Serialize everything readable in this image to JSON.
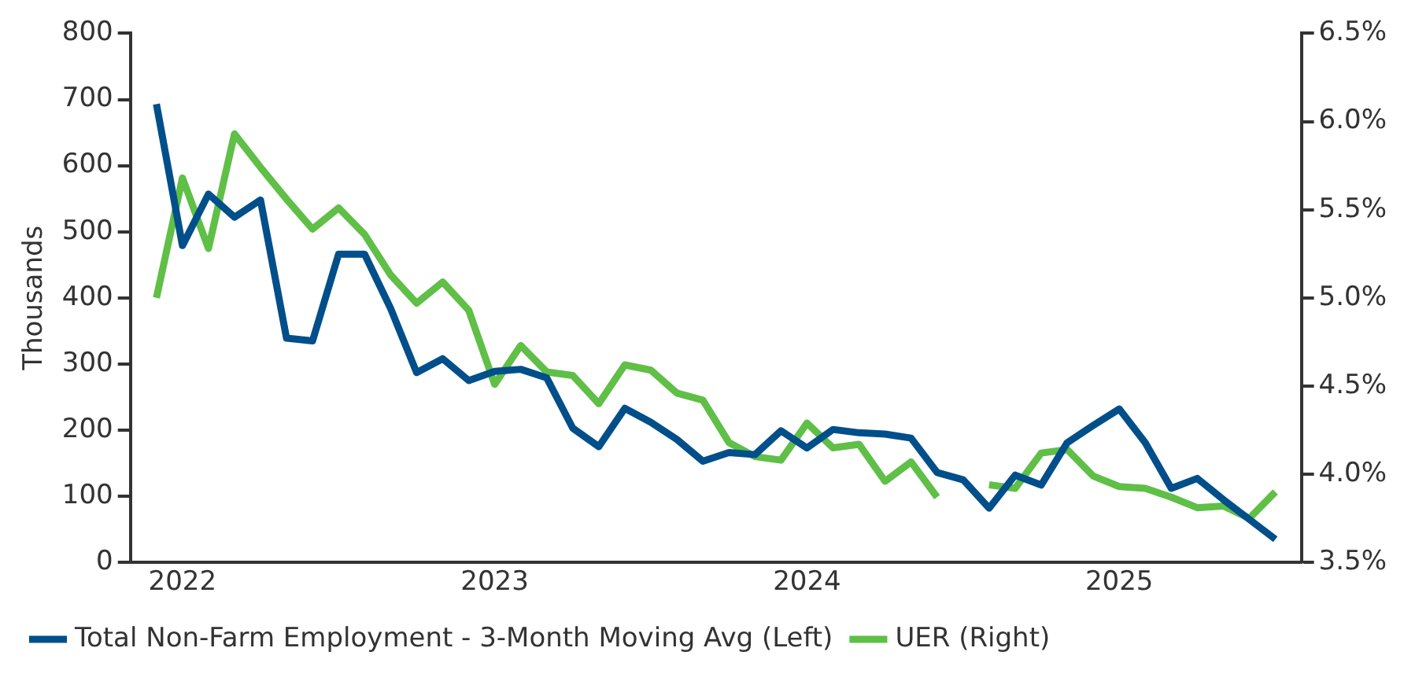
{
  "chart_data": {
    "type": "line",
    "ylabel": "Thousands",
    "x": [
      "2021-12",
      "2022-01",
      "2022-02",
      "2022-03",
      "2022-04",
      "2022-05",
      "2022-06",
      "2022-07",
      "2022-08",
      "2022-09",
      "2022-10",
      "2022-11",
      "2022-12",
      "2023-01",
      "2023-02",
      "2023-03",
      "2023-04",
      "2023-05",
      "2023-06",
      "2023-07",
      "2023-08",
      "2023-09",
      "2023-10",
      "2023-11",
      "2023-12",
      "2024-01",
      "2024-02",
      "2024-03",
      "2024-04",
      "2024-05",
      "2024-06",
      "2024-07",
      "2024-08",
      "2024-09",
      "2024-10",
      "2024-11",
      "2024-12",
      "2025-01",
      "2025-02",
      "2025-03",
      "2025-04",
      "2025-05",
      "2025-06",
      "2025-07"
    ],
    "series": [
      {
        "name": "Total Non-Farm Employment - 3-Month Moving Avg (Left)",
        "color": "#004f8a",
        "values": [
          693,
          479,
          557,
          522,
          548,
          339,
          335,
          466,
          466,
          384,
          287,
          308,
          275,
          289,
          292,
          279,
          203,
          175,
          233,
          212,
          186,
          153,
          166,
          163,
          199,
          173,
          201,
          196,
          194,
          188,
          136,
          125,
          82,
          132,
          117,
          181,
          207,
          232,
          181,
          112,
          127,
          95,
          65,
          35
        ]
      },
      {
        "name": "UER (Right)",
        "color": "#5fbf47",
        "axis": "y2",
        "values": [
          5.0,
          5.68,
          5.28,
          5.93,
          5.74,
          5.56,
          5.39,
          5.51,
          5.36,
          5.13,
          4.97,
          5.09,
          4.93,
          4.51,
          4.73,
          4.58,
          4.56,
          4.4,
          4.62,
          4.59,
          4.46,
          4.42,
          4.18,
          4.1,
          4.08,
          4.29,
          4.15,
          4.17,
          3.96,
          4.07,
          3.87,
          null,
          3.94,
          3.92,
          4.12,
          4.14,
          3.99,
          3.93,
          3.92,
          3.87,
          3.81,
          3.82,
          3.75,
          3.9
        ]
      }
    ],
    "xlim": [
      "2021-11",
      "2025-08"
    ],
    "xticks": [
      {
        "value": "2022",
        "label": "2022"
      },
      {
        "value": "2023",
        "label": "2023"
      },
      {
        "value": "2024",
        "label": "2024"
      },
      {
        "value": "2025",
        "label": "2025"
      }
    ],
    "ylim": [
      0,
      800
    ],
    "yticks": [
      0,
      100,
      200,
      300,
      400,
      500,
      600,
      700,
      800
    ],
    "y2lim": [
      3.5,
      6.5
    ],
    "y2ticks": [
      {
        "value": 3.5,
        "label": "3.5%"
      },
      {
        "value": 4,
        "label": "4.0%"
      },
      {
        "value": 4.5,
        "label": "4.5%"
      },
      {
        "value": 5,
        "label": "5.0%"
      },
      {
        "value": 5.5,
        "label": "5.5%"
      },
      {
        "value": 6,
        "label": "6.0%"
      },
      {
        "value": 6.5,
        "label": "6.5%"
      }
    ],
    "grid": false,
    "legend": "bottom",
    "marker": "none",
    "line_style": "solid"
  }
}
